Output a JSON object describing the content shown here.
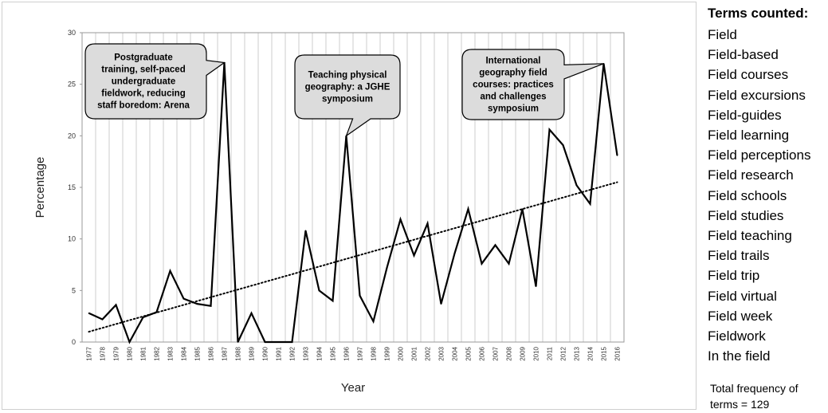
{
  "chart_data": {
    "type": "line",
    "title": "",
    "xlabel": "Year",
    "ylabel": "Percentage",
    "ylim": [
      0,
      30
    ],
    "yticks": [
      0,
      5,
      10,
      15,
      20,
      25,
      30
    ],
    "grid": "vertical gridlines at each year",
    "legend": "none",
    "categories": [
      "1977",
      "1978",
      "1979",
      "1980",
      "1981",
      "1982",
      "1983",
      "1984",
      "1985",
      "1986",
      "1987",
      "1988",
      "1989",
      "1990",
      "1991",
      "1992",
      "1993",
      "1994",
      "1995",
      "1996",
      "1997",
      "1998",
      "1999",
      "2000",
      "2001",
      "2002",
      "2003",
      "2004",
      "2005",
      "2006",
      "2007",
      "2008",
      "2009",
      "2010",
      "2011",
      "2012",
      "2013",
      "2014",
      "2015",
      "2016"
    ],
    "series": [
      {
        "values": [
          2.8,
          2.2,
          3.6,
          0,
          2.4,
          2.9,
          6.9,
          4.2,
          3.7,
          3.5,
          27.1,
          0,
          2.8,
          0,
          0,
          0,
          10.8,
          5.0,
          4.0,
          20.0,
          4.5,
          2.0,
          7.2,
          11.9,
          8.4,
          11.5,
          3.7,
          8.6,
          12.9,
          7.6,
          9.4,
          7.6,
          12.9,
          5.4,
          20.6,
          19.1,
          15.2,
          13.4,
          27.0,
          18.1
        ],
        "color": "#000000",
        "style": "solid"
      }
    ],
    "trendline": {
      "type": "linear",
      "style": "dotted",
      "color": "#000000",
      "start": {
        "x": "1977",
        "y": 1.0
      },
      "end": {
        "x": "2016",
        "y": 15.5
      }
    },
    "annotations": [
      {
        "text": [
          "Postgraduate",
          "training, self-paced",
          "undergraduate",
          "fieldwork, reducing",
          "staff boredom: Arena"
        ],
        "x": "1987",
        "y": 27.1
      },
      {
        "text": [
          "Teaching physical",
          "geography: a JGHE",
          "symposium"
        ],
        "x": "1996",
        "y": 20.0
      },
      {
        "text": [
          "International",
          "geography field",
          "courses: practices",
          "and challenges",
          "symposium"
        ],
        "x": "2015",
        "y": 27.0
      }
    ]
  },
  "terms": {
    "heading": "Terms counted:",
    "items": [
      "Field",
      "Field-based",
      "Field courses",
      "Field excursions",
      "Field-guides",
      "Field learning",
      "Field perceptions",
      "Field research",
      "Field schools",
      "Field studies",
      "Field teaching",
      "Field trails",
      "Field trip",
      "Field virtual",
      "Field week",
      "Fieldwork",
      "In the field"
    ],
    "total_line1": "Total frequency of",
    "total_line2": "terms = 129"
  },
  "colors": {
    "line": "#000000",
    "grid": "#cccccc",
    "callout_fill": "#dcdcdc",
    "callout_stroke": "#000000"
  }
}
